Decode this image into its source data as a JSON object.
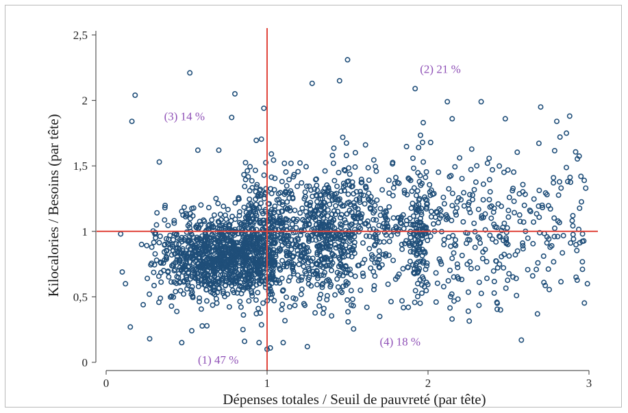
{
  "chart_data": {
    "type": "scatter",
    "title": "",
    "xlabel": "Dépenses totales / Seuil de pauvreté (par tête)",
    "ylabel": "Kilocalories / Besoins (par tête)",
    "xlim": [
      -0.08,
      3.06
    ],
    "ylim": [
      -0.05,
      2.6
    ],
    "x_ticks": [
      0,
      1,
      2,
      3
    ],
    "x_tick_labels": [
      "0",
      "1",
      "2",
      "3"
    ],
    "y_ticks": [
      0,
      0.5,
      1,
      1.5,
      2,
      2.5
    ],
    "y_tick_labels": [
      "0",
      "0,5",
      "1",
      "1,5",
      "2",
      "2,5"
    ],
    "reference_lines": {
      "x": 1,
      "y": 1,
      "color": "#e0453c"
    },
    "marker_color": "#1f4e79",
    "grid": false,
    "annotations": [
      {
        "text": "(1) 47 %",
        "x": 0.57,
        "y": 0.02
      },
      {
        "text": "(2) 21 %",
        "x": 1.95,
        "y": 2.24
      },
      {
        "text": "(3) 14 %",
        "x": 0.36,
        "y": 1.88
      },
      {
        "text": "(4) 18 %",
        "x": 1.7,
        "y": 0.16
      }
    ],
    "point_seed": 7,
    "clusters": [
      {
        "n": 1000,
        "mx": 0.72,
        "my": 0.8,
        "sx": 0.2,
        "sy": 0.16,
        "xmin": 0.25,
        "xmax": 1.05
      },
      {
        "n": 650,
        "mx": 1.15,
        "my": 0.98,
        "sx": 0.24,
        "sy": 0.24,
        "xmin": 0.85,
        "xmax": 1.55
      },
      {
        "n": 420,
        "mx": 1.65,
        "my": 1.02,
        "sx": 0.28,
        "sy": 0.26,
        "xmin": 1.3,
        "xmax": 2.0
      },
      {
        "n": 330,
        "mx": 2.3,
        "my": 1.0,
        "sx": 0.35,
        "sy": 0.28,
        "xmin": 1.9,
        "xmax": 2.98
      }
    ],
    "series": [
      {
        "values": [
          [
            0.09,
            0.98
          ],
          [
            0.1,
            0.69
          ],
          [
            0.12,
            0.6
          ],
          [
            0.15,
            0.27
          ],
          [
            0.16,
            1.84
          ],
          [
            0.18,
            2.04
          ],
          [
            0.22,
            0.9
          ],
          [
            0.23,
            0.44
          ],
          [
            0.27,
            0.18
          ],
          [
            0.33,
            1.53
          ],
          [
            0.47,
            0.15
          ],
          [
            0.52,
            2.21
          ],
          [
            0.57,
            1.62
          ],
          [
            0.7,
            1.62
          ],
          [
            0.78,
            1.87
          ],
          [
            0.8,
            2.05
          ],
          [
            0.85,
            0.25
          ],
          [
            0.86,
            0.16
          ],
          [
            0.95,
            0.15
          ],
          [
            0.98,
            1.94
          ],
          [
            1.0,
            0.1
          ],
          [
            1.02,
            0.11
          ],
          [
            1.1,
            0.15
          ],
          [
            1.25,
            0.12
          ],
          [
            1.28,
            2.13
          ],
          [
            1.45,
            2.15
          ],
          [
            1.5,
            2.31
          ],
          [
            1.58,
            0.55
          ],
          [
            1.62,
            0.42
          ],
          [
            1.7,
            0.35
          ],
          [
            1.92,
            2.09
          ],
          [
            1.97,
            1.83
          ],
          [
            2.05,
            0.46
          ],
          [
            2.12,
            1.99
          ],
          [
            2.15,
            1.86
          ],
          [
            2.25,
            0.39
          ],
          [
            2.33,
            1.99
          ],
          [
            2.4,
            1.47
          ],
          [
            2.45,
            0.4
          ],
          [
            2.48,
            1.86
          ],
          [
            2.55,
            0.51
          ],
          [
            2.58,
            0.17
          ],
          [
            2.65,
            0.66
          ],
          [
            2.68,
            0.37
          ],
          [
            2.7,
            1.95
          ],
          [
            2.72,
            0.61
          ],
          [
            2.8,
            1.84
          ],
          [
            2.82,
            1.72
          ],
          [
            2.86,
            1.75
          ],
          [
            2.88,
            1.88
          ],
          [
            2.92,
            0.65
          ],
          [
            2.95,
            1.42
          ],
          [
            2.98,
            1.33
          ],
          [
            2.99,
            0.6
          ],
          [
            2.9,
            1.12
          ],
          [
            2.96,
            0.98
          ]
        ]
      }
    ]
  }
}
